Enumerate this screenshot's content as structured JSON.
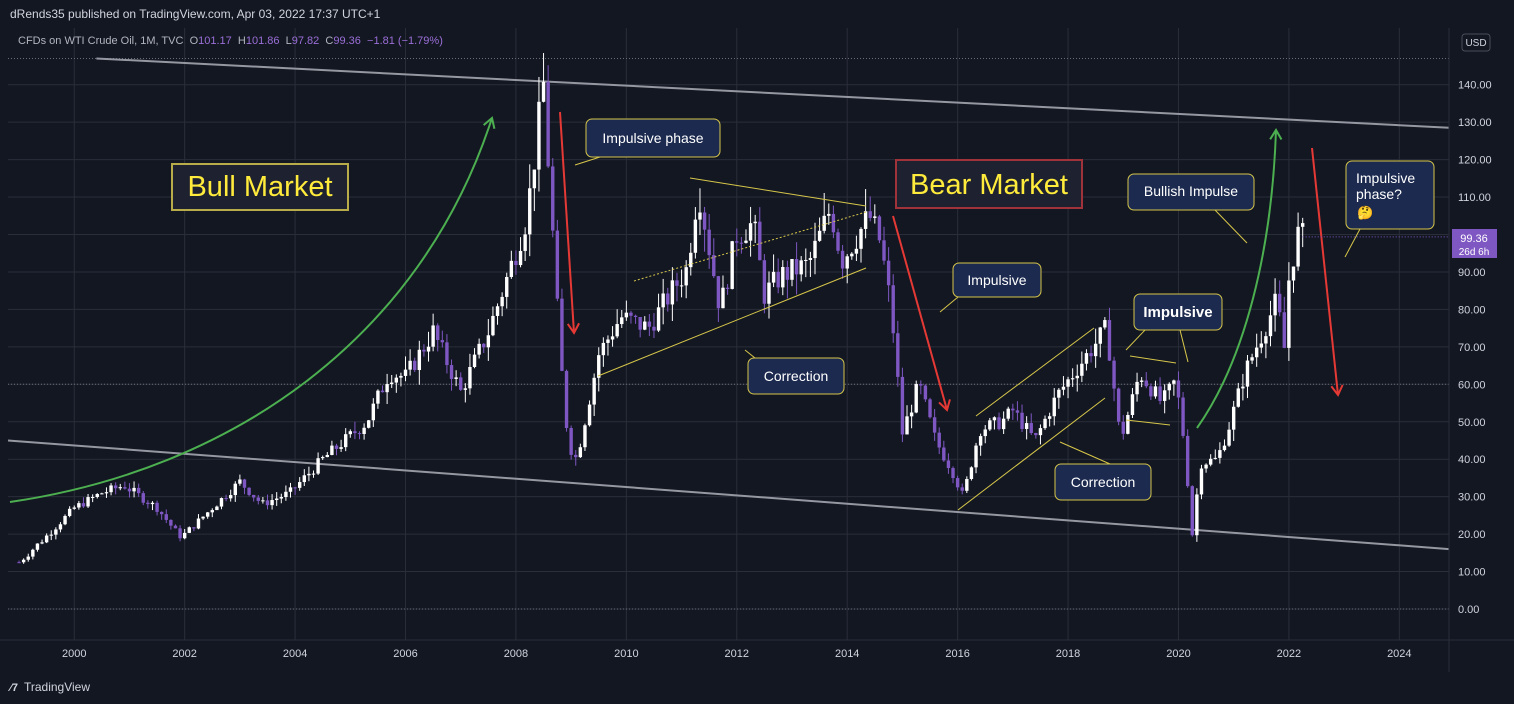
{
  "header": {
    "publisher_text": "dRends35 published on TradingView.com, Apr 03, 2022 17:37 UTC+1"
  },
  "legend": {
    "symbol": "CFDs on WTI Crude Oil, 1M, TVC",
    "o_label": "O",
    "o_value": "101.17",
    "h_label": "H",
    "h_value": "101.86",
    "l_label": "L",
    "l_value": "97.82",
    "c_label": "C",
    "c_value": "99.36",
    "change": "−1.81 (−1.79%)"
  },
  "currency": "USD",
  "price_tag": {
    "price": "99.36",
    "countdown": "26d 6h"
  },
  "footer": {
    "brand": "TradingView"
  },
  "colors": {
    "background": "#131722",
    "grid": "#2a2e39",
    "up_candle": "#ffffff",
    "down_candle": "#7e57c2",
    "channel_line": "#9598a1",
    "green_arrow": "#4caf50",
    "red_arrow": "#e53935",
    "annotation_bg": "#1c2a4f",
    "annotation_border": "#d6c64a",
    "bull_label_color": "#ffeb3b",
    "bear_label_color": "#ffeb3b"
  },
  "chart_data": {
    "type": "candlestick",
    "x_axis_ticks": [
      "2000",
      "2002",
      "2004",
      "2006",
      "2008",
      "2010",
      "2012",
      "2014",
      "2016",
      "2018",
      "2020",
      "2022",
      "2024"
    ],
    "y_axis_ticks": [
      "0.00",
      "10.00",
      "20.00",
      "30.00",
      "40.00",
      "50.00",
      "60.00",
      "70.00",
      "80.00",
      "90.00",
      "100.00",
      "110.00",
      "120.00",
      "130.00",
      "140.00"
    ],
    "ylim": [
      -4,
      155
    ],
    "xlim": [
      1998.8,
      2024.9
    ],
    "last_price": 99.36,
    "horizontal_dotted_levels": [
      147.0,
      60.0,
      0.0
    ],
    "series": [
      {
        "name": "WTI Crude Oil monthly close",
        "points": [
          [
            1999.0,
            12.5
          ],
          [
            1999.5,
            19.5
          ],
          [
            2000.0,
            27.0
          ],
          [
            2000.5,
            31.0
          ],
          [
            2000.9,
            33.0
          ],
          [
            2001.5,
            27.0
          ],
          [
            2001.9,
            19.5
          ],
          [
            2002.0,
            20.0
          ],
          [
            2002.5,
            27.0
          ],
          [
            2003.0,
            34.0
          ],
          [
            2003.4,
            28.0
          ],
          [
            2003.9,
            31.0
          ],
          [
            2004.5,
            40.0
          ],
          [
            2004.9,
            45.0
          ],
          [
            2005.3,
            50.0
          ],
          [
            2005.7,
            63.0
          ],
          [
            2006.0,
            62.0
          ],
          [
            2006.5,
            74.0
          ],
          [
            2007.0,
            58.0
          ],
          [
            2007.5,
            74.0
          ],
          [
            2007.9,
            91.0
          ],
          [
            2008.2,
            105.0
          ],
          [
            2008.5,
            140.0
          ],
          [
            2008.8,
            68.0
          ],
          [
            2008.95,
            44.0
          ],
          [
            2009.1,
            40.0
          ],
          [
            2009.5,
            68.0
          ],
          [
            2009.9,
            78.0
          ],
          [
            2010.4,
            75.0
          ],
          [
            2010.7,
            82.0
          ],
          [
            2011.1,
            91.0
          ],
          [
            2011.3,
            113.0
          ],
          [
            2011.7,
            80.0
          ],
          [
            2012.0,
            100.0
          ],
          [
            2012.3,
            103.0
          ],
          [
            2012.5,
            84.0
          ],
          [
            2012.8,
            89.0
          ],
          [
            2013.3,
            92.0
          ],
          [
            2013.7,
            107.0
          ],
          [
            2013.9,
            93.0
          ],
          [
            2014.4,
            105.0
          ],
          [
            2014.6,
            98.0
          ],
          [
            2014.8,
            80.0
          ],
          [
            2015.0,
            47.0
          ],
          [
            2015.3,
            60.0
          ],
          [
            2015.6,
            45.0
          ],
          [
            2015.9,
            37.0
          ],
          [
            2016.1,
            30.0
          ],
          [
            2016.4,
            48.0
          ],
          [
            2016.8,
            50.0
          ],
          [
            2017.0,
            53.0
          ],
          [
            2017.4,
            45.0
          ],
          [
            2017.8,
            57.0
          ],
          [
            2018.2,
            65.0
          ],
          [
            2018.7,
            75.0
          ],
          [
            2018.95,
            45.0
          ],
          [
            2019.3,
            63.0
          ],
          [
            2019.7,
            55.0
          ],
          [
            2019.95,
            61.0
          ],
          [
            2020.1,
            45.0
          ],
          [
            2020.25,
            20.0
          ],
          [
            2020.4,
            39.0
          ],
          [
            2020.7,
            40.0
          ],
          [
            2020.9,
            48.0
          ],
          [
            2021.2,
            63.0
          ],
          [
            2021.5,
            73.0
          ],
          [
            2021.8,
            83.0
          ],
          [
            2021.9,
            66.0
          ],
          [
            2022.0,
            88.0
          ],
          [
            2022.15,
            100.0
          ],
          [
            2022.25,
            99.36
          ]
        ]
      }
    ],
    "trendlines": [
      {
        "name": "upper-channel",
        "from": [
          2000.4,
          147.0
        ],
        "to": [
          2024.9,
          128.5
        ]
      },
      {
        "name": "lower-channel",
        "from": [
          1998.8,
          45.0
        ],
        "to": [
          2024.9,
          16.0
        ]
      }
    ]
  },
  "annotations": {
    "bull_market": "Bull Market",
    "bear_market": "Bear Market",
    "impulsive_phase": "Impulsive phase",
    "correction_1": "Correction",
    "impulsive_1": "Impulsive",
    "impulsive_2": "Impulsive",
    "correction_2": "Correction",
    "bullish_impulse": "Bullish Impulse",
    "impulsive_phase_q_line1": "Impulsive",
    "impulsive_phase_q_line2": "phase?",
    "impulsive_phase_q_emoji": "🤔"
  }
}
